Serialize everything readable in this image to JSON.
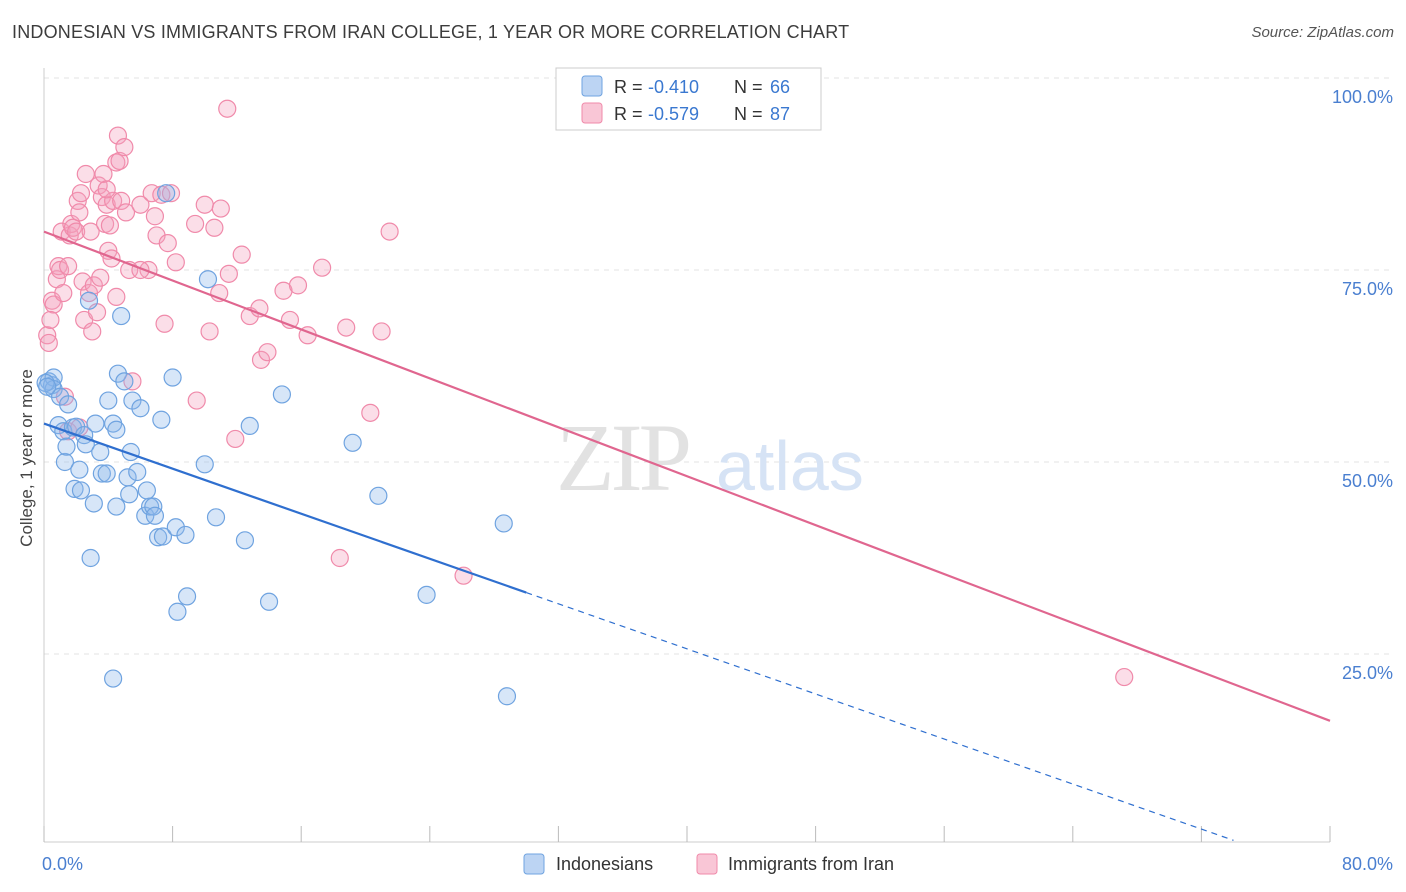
{
  "title": "INDONESIAN VS IMMIGRANTS FROM IRAN COLLEGE, 1 YEAR OR MORE CORRELATION CHART",
  "source": "Source: ZipAtlas.com",
  "watermark": {
    "zip": "ZIP",
    "atlas": "atlas"
  },
  "legend": {
    "rows": [
      {
        "r_label": "R =",
        "r_value": "-0.410",
        "n_label": "N =",
        "n_value": "66"
      },
      {
        "r_label": "R =",
        "r_value": "-0.579",
        "n_label": "N =",
        "n_value": "87"
      }
    ]
  },
  "colors": {
    "blue": "#6fa3e0",
    "blue_line": "#2f6fcf",
    "pink": "#f08aaa",
    "pink_line": "#e0668f",
    "tick_label": "#4a7fd0"
  },
  "chart_data": {
    "type": "scatter",
    "xlabel": "",
    "ylabel": "College, 1 year or more",
    "xlim": [
      0,
      80
    ],
    "ylim": [
      0,
      105
    ],
    "x_tick_labels": [
      {
        "v": 0,
        "label": "0.0%"
      },
      {
        "v": 80,
        "label": "80.0%"
      }
    ],
    "y_tick_labels": [
      {
        "v": 25,
        "label": "25.0%"
      },
      {
        "v": 50,
        "label": "50.0%"
      },
      {
        "v": 75,
        "label": "75.0%"
      },
      {
        "v": 100,
        "label": "100.0%"
      }
    ],
    "grid": true,
    "legend_position": "bottom",
    "series": [
      {
        "name": "Indonesians",
        "color": "#6fa3e0",
        "trend": {
          "x0": 0,
          "y0": 55,
          "x1": 30,
          "y1": 33,
          "dash_to_x": 74
        },
        "points": [
          [
            0.3,
            60.5
          ],
          [
            0.5,
            60
          ],
          [
            0.6,
            61
          ],
          [
            0.6,
            59.5
          ],
          [
            0.9,
            54.8
          ],
          [
            1,
            58.5
          ],
          [
            1.2,
            54
          ],
          [
            1.3,
            50
          ],
          [
            1.4,
            52
          ],
          [
            1.5,
            57.5
          ],
          [
            1.8,
            54.5
          ],
          [
            1.9,
            46.5
          ],
          [
            2,
            54.6
          ],
          [
            2.2,
            49
          ],
          [
            2.3,
            46.3
          ],
          [
            2.5,
            53.5
          ],
          [
            2.6,
            52.3
          ],
          [
            2.8,
            71
          ],
          [
            2.9,
            37.5
          ],
          [
            3.1,
            44.6
          ],
          [
            3.2,
            55
          ],
          [
            3.5,
            51.3
          ],
          [
            3.6,
            48.5
          ],
          [
            3.9,
            48.5
          ],
          [
            4,
            58
          ],
          [
            4.3,
            55
          ],
          [
            4.5,
            44.2
          ],
          [
            4.5,
            54.2
          ],
          [
            4.6,
            61.5
          ],
          [
            4.8,
            69
          ],
          [
            5,
            60.5
          ],
          [
            5.2,
            48
          ],
          [
            5.3,
            45.8
          ],
          [
            5.4,
            51.3
          ],
          [
            5.5,
            58
          ],
          [
            5.8,
            48.7
          ],
          [
            6,
            57
          ],
          [
            6.3,
            43
          ],
          [
            6.4,
            46.3
          ],
          [
            6.6,
            44.2
          ],
          [
            6.8,
            44.2
          ],
          [
            6.9,
            43
          ],
          [
            7.1,
            40.2
          ],
          [
            7.3,
            55.5
          ],
          [
            7.4,
            40.3
          ],
          [
            7.6,
            85
          ],
          [
            8,
            61
          ],
          [
            8.2,
            41.5
          ],
          [
            8.3,
            30.5
          ],
          [
            8.8,
            40.5
          ],
          [
            8.9,
            32.5
          ],
          [
            10,
            49.7
          ],
          [
            10.2,
            73.8
          ],
          [
            10.7,
            42.8
          ],
          [
            12.5,
            39.8
          ],
          [
            12.8,
            54.7
          ],
          [
            14,
            31.8
          ],
          [
            14.8,
            58.8
          ],
          [
            19.2,
            52.5
          ],
          [
            20.8,
            45.6
          ],
          [
            23.8,
            32.7
          ],
          [
            28.6,
            42
          ],
          [
            28.8,
            19.5
          ],
          [
            4.3,
            21.8
          ],
          [
            0.1,
            60.3
          ],
          [
            0.2,
            59.8
          ]
        ]
      },
      {
        "name": "Immigrants from Iran",
        "color": "#f08aaa",
        "trend": {
          "x0": 0,
          "y0": 80,
          "x1": 80,
          "y1": 16.3
        },
        "points": [
          [
            0.2,
            66.5
          ],
          [
            0.3,
            65.5
          ],
          [
            0.5,
            71
          ],
          [
            0.6,
            70.5
          ],
          [
            0.8,
            73.8
          ],
          [
            0.9,
            75.5
          ],
          [
            1,
            75
          ],
          [
            1.1,
            80
          ],
          [
            1.2,
            72
          ],
          [
            1.3,
            58.5
          ],
          [
            1.5,
            75.5
          ],
          [
            1.6,
            79.5
          ],
          [
            1.7,
            81
          ],
          [
            1.8,
            80.5
          ],
          [
            2,
            80
          ],
          [
            2.1,
            84
          ],
          [
            2.2,
            82.5
          ],
          [
            2.3,
            85
          ],
          [
            2.4,
            73.5
          ],
          [
            2.5,
            68.5
          ],
          [
            2.6,
            87.5
          ],
          [
            2.8,
            72
          ],
          [
            2.9,
            80
          ],
          [
            3,
            67
          ],
          [
            3.1,
            73
          ],
          [
            3.3,
            69.5
          ],
          [
            3.4,
            86
          ],
          [
            3.5,
            74
          ],
          [
            3.6,
            84.5
          ],
          [
            3.7,
            87.5
          ],
          [
            3.8,
            81
          ],
          [
            3.9,
            83.5
          ],
          [
            4,
            77.5
          ],
          [
            4.1,
            80.8
          ],
          [
            4.2,
            76.5
          ],
          [
            4.3,
            84
          ],
          [
            4.5,
            89
          ],
          [
            4.6,
            92.5
          ],
          [
            4.7,
            89.2
          ],
          [
            4.8,
            84
          ],
          [
            5,
            91
          ],
          [
            5.1,
            82.5
          ],
          [
            5.3,
            75
          ],
          [
            5.5,
            60.5
          ],
          [
            6,
            83.5
          ],
          [
            6.5,
            75
          ],
          [
            6.7,
            85
          ],
          [
            6.9,
            82
          ],
          [
            7,
            79.5
          ],
          [
            7.3,
            84.8
          ],
          [
            7.5,
            68
          ],
          [
            7.7,
            78.5
          ],
          [
            7.9,
            85
          ],
          [
            8.2,
            76
          ],
          [
            9.4,
            81
          ],
          [
            9.5,
            58
          ],
          [
            10,
            83.5
          ],
          [
            10.3,
            67
          ],
          [
            10.6,
            80.5
          ],
          [
            10.9,
            72
          ],
          [
            11,
            83
          ],
          [
            11.5,
            74.5
          ],
          [
            11.9,
            53
          ],
          [
            12.3,
            77
          ],
          [
            12.8,
            69
          ],
          [
            13.4,
            70
          ],
          [
            13.5,
            63.3
          ],
          [
            13.9,
            64.3
          ],
          [
            14.9,
            72.3
          ],
          [
            15.3,
            68.5
          ],
          [
            15.8,
            73
          ],
          [
            16.4,
            66.5
          ],
          [
            17.3,
            75.3
          ],
          [
            18.4,
            37.5
          ],
          [
            18.8,
            67.5
          ],
          [
            20.3,
            56.4
          ],
          [
            21,
            67
          ],
          [
            21.5,
            80
          ],
          [
            26.1,
            35.2
          ],
          [
            67.2,
            22
          ],
          [
            0.4,
            68.5
          ],
          [
            1.5,
            54
          ],
          [
            2.2,
            54.5
          ],
          [
            4.5,
            71.5
          ],
          [
            6,
            75
          ],
          [
            3.9,
            85.5
          ],
          [
            11.4,
            96
          ]
        ]
      }
    ]
  },
  "bottom_legend": [
    {
      "label": "Indonesians"
    },
    {
      "label": "Immigrants from Iran"
    }
  ]
}
